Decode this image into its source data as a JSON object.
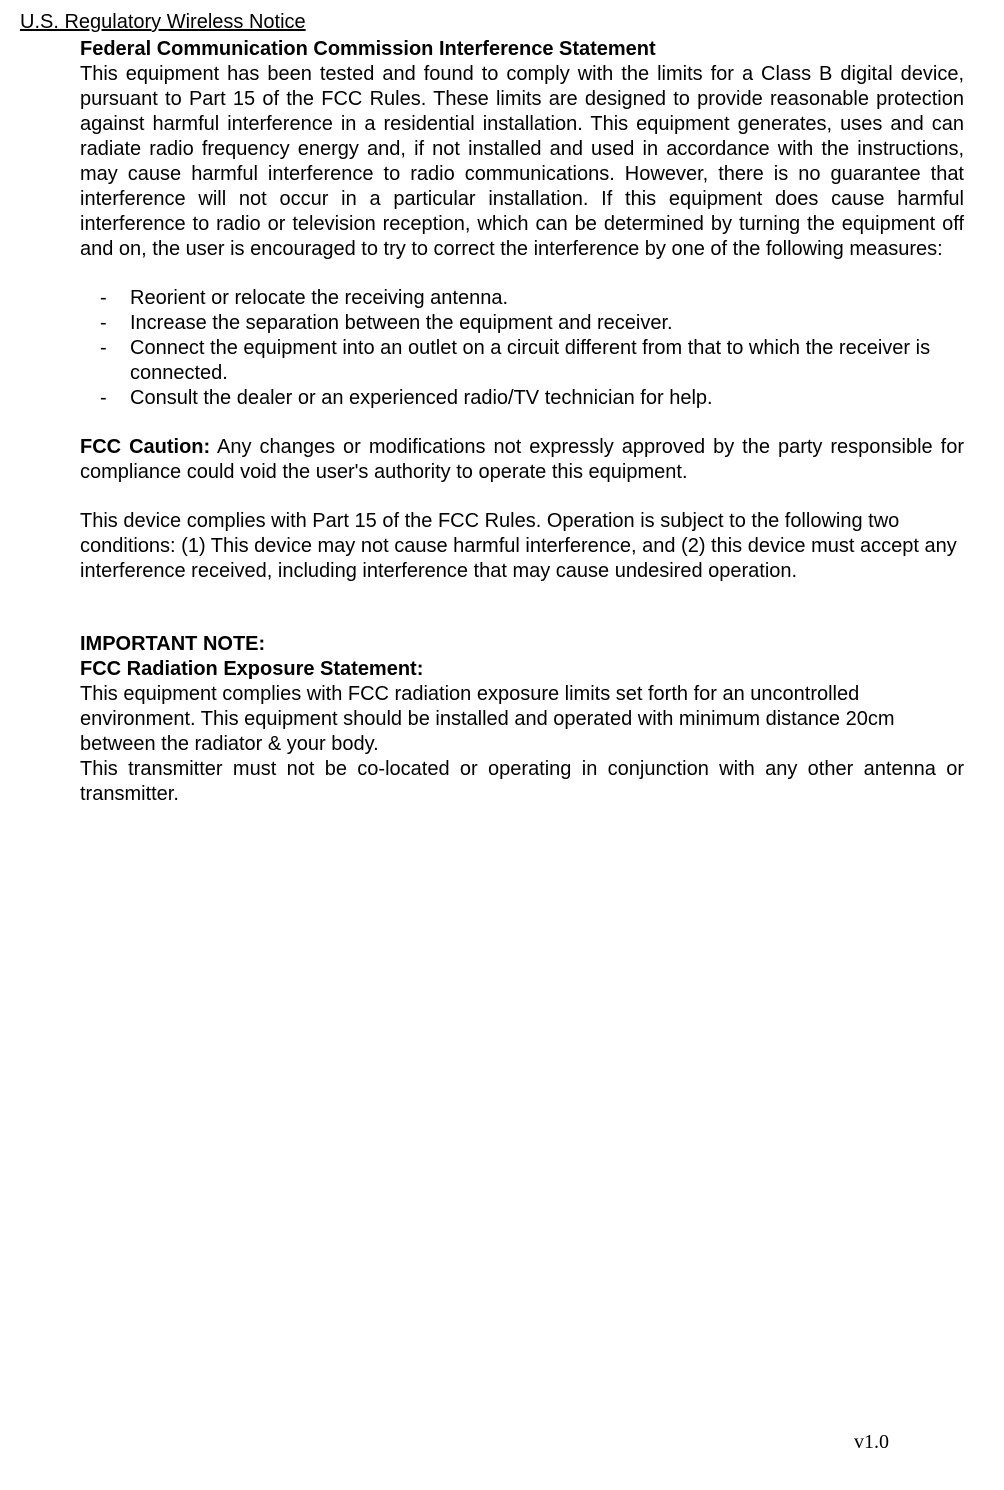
{
  "page_title": "U.S. Regulatory Wireless Notice",
  "heading1": "Federal Communication Commission Interference Statement",
  "paragraph1": "This equipment has been tested and found to comply with the limits for a Class B digital device, pursuant to Part 15 of the FCC Rules.   These limits are designed to provide reasonable protection against harmful interference in a residential installation. This equipment generates, uses and can radiate radio frequency energy and, if not installed and used in accordance with the instructions, may cause harmful interference to radio communications.   However, there is no guarantee that interference will not occur in a particular installation.   If this equipment does cause harmful interference to radio or television reception, which can be determined by turning the equipment off and on, the user is encouraged to try to correct the interference by one of the following measures:",
  "bullets": [
    "Reorient or relocate the receiving antenna.",
    "Increase the separation between the equipment and receiver.",
    "Connect the equipment into an outlet on a circuit different from that to which the receiver is connected.",
    "Consult the dealer or an experienced radio/TV technician for help."
  ],
  "caution_label": "FCC Caution:",
  "caution_text": " Any changes or modifications not expressly approved by the party responsible for compliance could void the user's authority to operate this equipment.",
  "paragraph2": "This device complies with Part 15 of the FCC Rules. Operation is subject to the following two conditions: (1) This device may not cause harmful interference, and (2) this device must accept any interference received, including interference that may cause undesired operation.",
  "important_label": "IMPORTANT NOTE:",
  "exposure_heading": "FCC Radiation Exposure Statement:",
  "exposure_text1": "This equipment complies with FCC radiation exposure limits set forth for an uncontrolled environment. This equipment should be installed and operated with minimum distance 20cm between the radiator & your body.",
  "exposure_text2": "This transmitter must not be co-located or operating in conjunction with any other antenna or transmitter.",
  "version": "v1.0"
}
